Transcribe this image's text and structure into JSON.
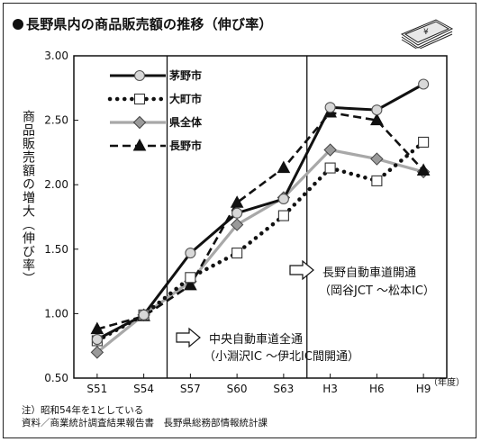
{
  "title": "長野県内の商品販売額の推移（伸び率）",
  "ylabel": "商品販売額の増大（伸び率）",
  "x_unit": "（年度）",
  "notes": [
    "注）昭和54年を1としている",
    "資料／商業統計調査結果報告書　長野県総務部情報統計課"
  ],
  "annotations": [
    {
      "line1": "長野自動車道開通",
      "line2": "（岡谷JCT ～松本IC）"
    },
    {
      "line1": "中央自動車道全通",
      "line2": "（小淵沢IC ～伊北IC間開通）"
    }
  ],
  "colors": {
    "black": "#111111",
    "gray": "#a8a8a8",
    "marker_gray": "#9a9a9a",
    "marker_light": "#d8d8d8"
  },
  "chart_data": {
    "type": "line",
    "categories": [
      "S51",
      "S54",
      "S57",
      "S60",
      "S63",
      "H3",
      "H6",
      "H9"
    ],
    "ylim": [
      0.5,
      3.0
    ],
    "yticks": [
      "0.50",
      "1.00",
      "1.50",
      "2.00",
      "2.50",
      "3.00"
    ],
    "ytick_values": [
      0.5,
      1.0,
      1.5,
      2.0,
      2.5,
      3.0
    ],
    "event_lines_after": [
      "S54",
      "S63"
    ],
    "legend_position": "top-left",
    "series": [
      {
        "name": "茅野市",
        "style": "solid-black",
        "marker": "circle",
        "values": [
          0.8,
          0.99,
          1.47,
          1.78,
          1.89,
          2.6,
          2.58,
          2.78
        ]
      },
      {
        "name": "大町市",
        "style": "dotted-black",
        "marker": "square",
        "values": [
          0.79,
          0.99,
          1.28,
          1.47,
          1.76,
          2.13,
          2.03,
          2.33
        ]
      },
      {
        "name": "県全体",
        "style": "solid-gray",
        "marker": "diamond",
        "values": [
          0.7,
          0.99,
          1.25,
          1.69,
          1.9,
          2.27,
          2.2,
          2.1
        ]
      },
      {
        "name": "長野市",
        "style": "dashed-black",
        "marker": "triangle",
        "values": [
          0.88,
          0.98,
          1.22,
          1.86,
          2.13,
          2.56,
          2.5,
          2.11
        ]
      }
    ]
  }
}
